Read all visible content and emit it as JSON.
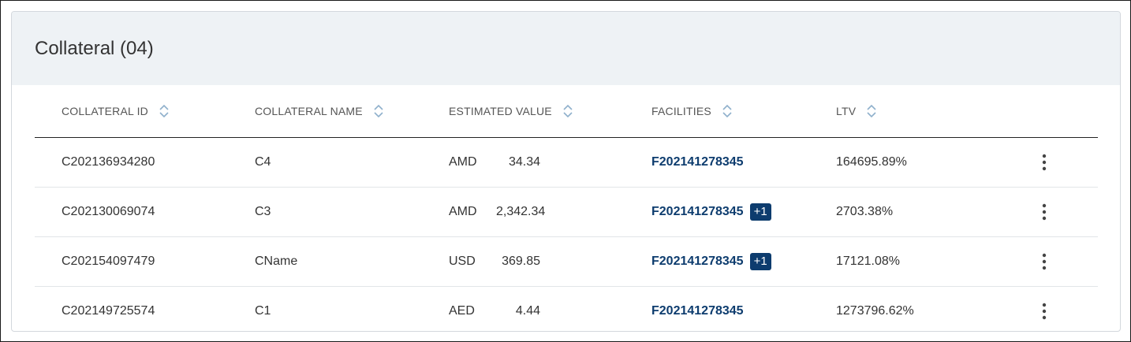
{
  "card": {
    "title": "Collateral (04)"
  },
  "table": {
    "columns": [
      {
        "label": "COLLATERAL ID"
      },
      {
        "label": "COLLATERAL NAME"
      },
      {
        "label": "ESTIMATED VALUE"
      },
      {
        "label": "FACILITIES"
      },
      {
        "label": "LTV"
      }
    ],
    "rows": [
      {
        "id": "C202136934280",
        "name": "C4",
        "currency": "AMD",
        "amount": "34.34",
        "facility": "F202141278345",
        "extra": "",
        "ltv": "164695.89%"
      },
      {
        "id": "C202130069074",
        "name": "C3",
        "currency": "AMD",
        "amount": "2,342.34",
        "facility": "F202141278345",
        "extra": "+1",
        "ltv": "2703.38%"
      },
      {
        "id": "C202154097479",
        "name": "CName",
        "currency": "USD",
        "amount": "369.85",
        "facility": "F202141278345",
        "extra": "+1",
        "ltv": "17121.08%"
      },
      {
        "id": "C202149725574",
        "name": "C1",
        "currency": "AED",
        "amount": "4.44",
        "facility": "F202141278345",
        "extra": "",
        "ltv": "1273796.62%"
      }
    ]
  },
  "icons": {
    "sort": "sort-updown-icon",
    "row_menu": "kebab-menu-icon"
  },
  "colors": {
    "header_bg": "#eef2f5",
    "link": "#0d3c6e",
    "badge_bg": "#0d3c6e",
    "sort_icon": "#8fb0cc"
  }
}
